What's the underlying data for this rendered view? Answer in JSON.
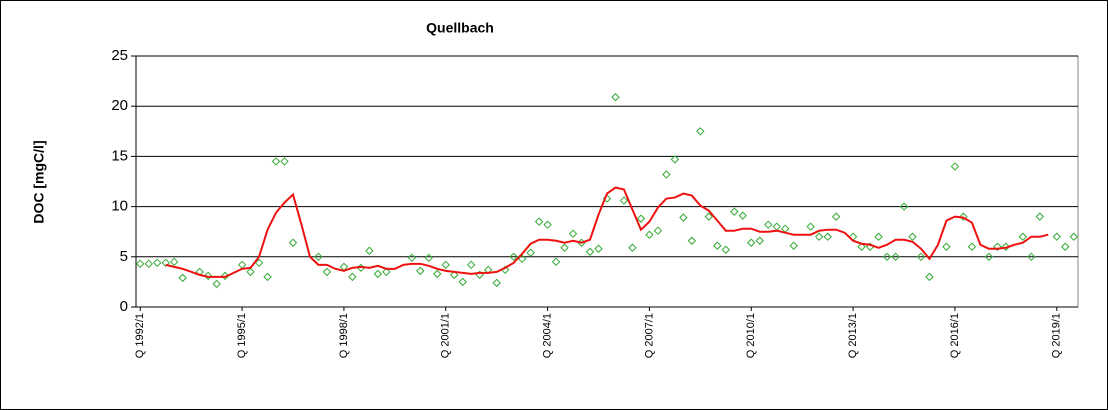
{
  "chart_data": {
    "type": "line",
    "title": "Quellbach",
    "y_label": "DOC [mgC/l]",
    "categories": [
      "Q 1992/1",
      null,
      null,
      null,
      null,
      null,
      null,
      null,
      null,
      null,
      null,
      null,
      "Q 1995/1",
      null,
      null,
      null,
      null,
      null,
      null,
      null,
      null,
      null,
      null,
      null,
      "Q 1998/1",
      null,
      null,
      null,
      null,
      null,
      null,
      null,
      null,
      null,
      null,
      null,
      "Q 2001/1",
      null,
      null,
      null,
      null,
      null,
      null,
      null,
      null,
      null,
      null,
      null,
      "Q 2004/1",
      null,
      null,
      null,
      null,
      null,
      null,
      null,
      null,
      null,
      null,
      null,
      "Q 2007/1",
      null,
      null,
      null,
      null,
      null,
      null,
      null,
      null,
      null,
      null,
      null,
      "Q 2010/1",
      null,
      null,
      null,
      null,
      null,
      null,
      null,
      null,
      null,
      null,
      null,
      "Q 2013/1",
      null,
      null,
      null,
      null,
      null,
      null,
      null,
      null,
      null,
      null,
      null,
      "Q 2016/1",
      null,
      null,
      null,
      null,
      null,
      null,
      null,
      null,
      null,
      null,
      null,
      "Q 2019/1",
      null,
      null
    ],
    "series": [
      {
        "style": "markers",
        "color": "#33aa33",
        "values": [
          4.3,
          4.3,
          4.4,
          4.4,
          4.5,
          2.9,
          null,
          3.5,
          3.1,
          2.3,
          3.1,
          null,
          4.2,
          3.5,
          4.4,
          3.0,
          14.5,
          14.5,
          6.4,
          null,
          null,
          5.0,
          3.5,
          null,
          4.0,
          3.0,
          3.9,
          5.6,
          3.3,
          3.5,
          null,
          null,
          4.9,
          3.6,
          4.9,
          3.3,
          4.2,
          3.2,
          2.5,
          4.2,
          3.2,
          3.7,
          2.4,
          3.7,
          5.0,
          4.8,
          5.4,
          8.5,
          8.2,
          4.5,
          5.9,
          7.3,
          6.4,
          5.5,
          5.8,
          10.8,
          20.9,
          10.6,
          5.9,
          8.8,
          7.2,
          7.6,
          13.2,
          14.7,
          8.9,
          6.6,
          17.5,
          9.0,
          6.1,
          5.7,
          9.5,
          9.1,
          6.4,
          6.6,
          8.2,
          8.0,
          7.8,
          6.1,
          null,
          8.0,
          7.0,
          7.0,
          9.0,
          null,
          7.0,
          6.0,
          6.0,
          7.0,
          5.0,
          5.0,
          10.0,
          7.0,
          5.0,
          3.0,
          null,
          6.0,
          14.0,
          9.0,
          6.0,
          null,
          5.0,
          6.0,
          6.0,
          null,
          7.0,
          5.0,
          9.0,
          null,
          7.0,
          6.0,
          7.0
        ]
      },
      {
        "style": "line",
        "color": "#ee1111",
        "values": [
          null,
          null,
          null,
          4.2,
          4.0,
          3.8,
          3.5,
          3.2,
          3.0,
          3.0,
          3.0,
          3.4,
          3.8,
          3.9,
          5.0,
          7.7,
          9.4,
          10.4,
          11.2,
          8.2,
          5.0,
          4.2,
          4.2,
          3.8,
          3.6,
          3.9,
          4.0,
          3.9,
          4.1,
          3.8,
          3.8,
          4.2,
          4.3,
          4.3,
          4.1,
          3.8,
          3.6,
          3.5,
          3.4,
          3.3,
          3.4,
          3.4,
          3.5,
          3.9,
          4.4,
          5.3,
          6.3,
          6.7,
          6.7,
          6.6,
          6.4,
          6.6,
          6.4,
          6.7,
          9.2,
          11.3,
          11.9,
          11.7,
          9.7,
          7.7,
          8.5,
          9.9,
          10.8,
          10.9,
          11.3,
          11.1,
          10.1,
          9.6,
          8.6,
          7.6,
          7.6,
          7.8,
          7.8,
          7.5,
          7.5,
          7.6,
          7.4,
          7.2,
          7.2,
          7.2,
          7.6,
          7.7,
          7.7,
          7.4,
          6.6,
          6.3,
          6.2,
          5.9,
          6.2,
          6.7,
          6.7,
          6.5,
          5.8,
          4.8,
          6.2,
          8.6,
          9.0,
          8.9,
          8.4,
          6.2,
          5.8,
          5.8,
          5.9,
          6.2,
          6.4,
          7.0,
          7.0,
          7.2,
          null,
          null,
          null
        ]
      }
    ],
    "ylim": [
      0,
      25
    ],
    "yticks": [
      0,
      5,
      10,
      15,
      20,
      25
    ],
    "grid": true
  }
}
